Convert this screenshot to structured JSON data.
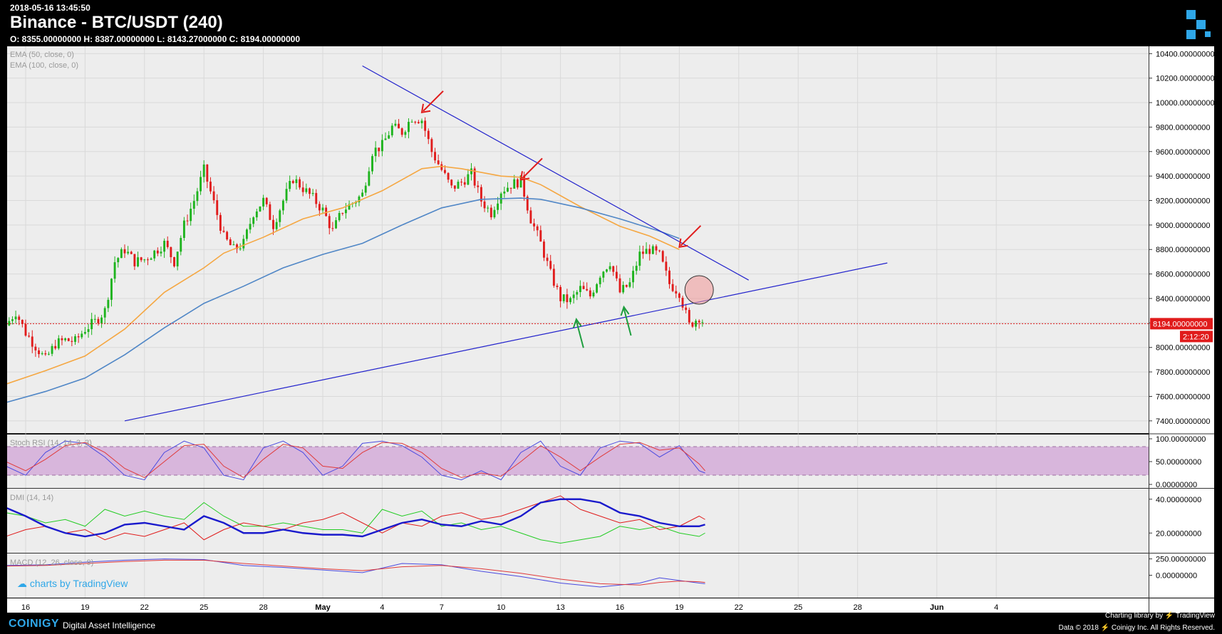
{
  "header": {
    "timestamp": "2018-05-16 13:45:50",
    "title": "Binance - BTC/USDT (240)",
    "ohlc": "O: 8355.00000000 H: 8387.00000000 L: 8143.27000000 C: 8194.00000000"
  },
  "footer": {
    "brand": "COINIGY",
    "tagline": "Digital Asset Intelligence",
    "library": "Charting library by ⚡ TradingView",
    "data_credit": "Data © 2018 ⚡ Coinigy Inc. All Rights Reserved.",
    "watermark": "charts by TradingView"
  },
  "indicators": {
    "ema50": "EMA (50, close, 0)",
    "ema100": "EMA (100, close, 0)",
    "stoch": "Stoch RSI (14, 14, 3, 3)",
    "dmi": "DMI (14, 14)",
    "macd": "MACD (12, 26, close, 9)"
  },
  "colors": {
    "up": "#1db31d",
    "down": "#e01b1b",
    "ema50": "#f5a742",
    "ema100": "#4f86c6",
    "trendline": "#2222cc",
    "arrow_red": "#e01b1b",
    "arrow_green": "#1e9e3e"
  },
  "chart_data": {
    "type": "candlestick",
    "x_axis_labels": [
      "16",
      "19",
      "22",
      "25",
      "28",
      "May",
      "4",
      "7",
      "10",
      "13",
      "16",
      "19",
      "22",
      "25",
      "28",
      "Jun",
      "4"
    ],
    "y_ticks": [
      "10400.00000000",
      "10200.00000000",
      "10000.00000000",
      "9800.00000000",
      "9600.00000000",
      "9400.00000000",
      "9200.00000000",
      "9000.00000000",
      "8800.00000000",
      "8600.00000000",
      "8400.00000000",
      "8200.00000000",
      "8000.00000000",
      "7800.00000000",
      "7600.00000000",
      "7400.00000000"
    ],
    "ylim": [
      7300,
      10460
    ],
    "last_price": "8194.00000000",
    "countdown": "2:12:20",
    "x_tick_dates": [
      16,
      19,
      22,
      25,
      28,
      31,
      34,
      37,
      40,
      43,
      46,
      49,
      52,
      55,
      58,
      62,
      65
    ],
    "close_path": [
      [
        15.0,
        8180
      ],
      [
        15.5,
        8290
      ],
      [
        16.0,
        8120
      ],
      [
        16.5,
        8010
      ],
      [
        17.0,
        7900
      ],
      [
        17.5,
        8030
      ],
      [
        18.0,
        8060
      ],
      [
        18.5,
        8050
      ],
      [
        19.0,
        8150
      ],
      [
        19.5,
        8210
      ],
      [
        20.0,
        8300
      ],
      [
        20.5,
        8700
      ],
      [
        21.0,
        8800
      ],
      [
        21.5,
        8700
      ],
      [
        22.0,
        8720
      ],
      [
        22.5,
        8780
      ],
      [
        23.0,
        8850
      ],
      [
        23.5,
        8700
      ],
      [
        24.0,
        9000
      ],
      [
        24.5,
        9200
      ],
      [
        25.0,
        9450
      ],
      [
        25.5,
        9180
      ],
      [
        26.0,
        8900
      ],
      [
        26.5,
        8800
      ],
      [
        27.0,
        8850
      ],
      [
        27.5,
        9100
      ],
      [
        28.0,
        9200
      ],
      [
        28.5,
        9000
      ],
      [
        29.0,
        9200
      ],
      [
        29.5,
        9380
      ],
      [
        30.0,
        9300
      ],
      [
        30.5,
        9220
      ],
      [
        31.0,
        9120
      ],
      [
        31.5,
        8950
      ],
      [
        32.0,
        9120
      ],
      [
        32.5,
        9180
      ],
      [
        33.0,
        9250
      ],
      [
        33.5,
        9600
      ],
      [
        34.0,
        9650
      ],
      [
        34.5,
        9800
      ],
      [
        35.0,
        9760
      ],
      [
        35.5,
        9880
      ],
      [
        36.0,
        9860
      ],
      [
        36.5,
        9600
      ],
      [
        37.0,
        9450
      ],
      [
        37.5,
        9300
      ],
      [
        38.0,
        9350
      ],
      [
        38.5,
        9420
      ],
      [
        39.0,
        9200
      ],
      [
        39.5,
        9100
      ],
      [
        40.0,
        9280
      ],
      [
        40.5,
        9330
      ],
      [
        41.0,
        9360
      ],
      [
        41.5,
        9050
      ],
      [
        42.0,
        8850
      ],
      [
        42.5,
        8600
      ],
      [
        43.0,
        8400
      ],
      [
        43.5,
        8380
      ],
      [
        44.0,
        8480
      ],
      [
        44.5,
        8420
      ],
      [
        45.0,
        8600
      ],
      [
        45.5,
        8700
      ],
      [
        46.0,
        8450
      ],
      [
        46.5,
        8520
      ],
      [
        47.0,
        8760
      ],
      [
        47.5,
        8800
      ],
      [
        48.0,
        8750
      ],
      [
        48.5,
        8520
      ],
      [
        49.0,
        8450
      ],
      [
        49.5,
        8180
      ],
      [
        50.0,
        8250
      ],
      [
        50.3,
        8194
      ]
    ],
    "series": [
      {
        "name": "EMA (50, close, 0)",
        "points": [
          [
            15,
            7700
          ],
          [
            17,
            7810
          ],
          [
            19,
            7930
          ],
          [
            21,
            8150
          ],
          [
            23,
            8450
          ],
          [
            25,
            8650
          ],
          [
            26,
            8770
          ],
          [
            28,
            8900
          ],
          [
            30,
            9050
          ],
          [
            32,
            9140
          ],
          [
            34,
            9280
          ],
          [
            36,
            9460
          ],
          [
            37,
            9480
          ],
          [
            38,
            9460
          ],
          [
            40,
            9400
          ],
          [
            41,
            9390
          ],
          [
            42,
            9330
          ],
          [
            44,
            9150
          ],
          [
            46,
            8990
          ],
          [
            47.5,
            8910
          ],
          [
            49,
            8800
          ]
        ]
      },
      {
        "name": "EMA (100, close, 0)",
        "points": [
          [
            15,
            7550
          ],
          [
            17,
            7640
          ],
          [
            19,
            7750
          ],
          [
            21,
            7940
          ],
          [
            23,
            8160
          ],
          [
            25,
            8360
          ],
          [
            27,
            8500
          ],
          [
            29,
            8650
          ],
          [
            31,
            8760
          ],
          [
            33,
            8850
          ],
          [
            35,
            9000
          ],
          [
            37,
            9140
          ],
          [
            39,
            9210
          ],
          [
            41,
            9220
          ],
          [
            42,
            9210
          ],
          [
            44,
            9140
          ],
          [
            46,
            9050
          ],
          [
            48,
            8950
          ],
          [
            49,
            8890
          ]
        ]
      }
    ],
    "annotations": {
      "downtrend_line": [
        [
          33.0,
          10300
        ],
        [
          52.5,
          8550
        ]
      ],
      "uptrend_line": [
        [
          21.0,
          7400
        ],
        [
          59.5,
          8690
        ]
      ],
      "red_arrows_at": [
        [
          36.0,
          9920
        ],
        [
          41.0,
          9370
        ],
        [
          49.0,
          8820
        ]
      ],
      "green_arrows_at": [
        [
          43.8,
          8230
        ],
        [
          46.2,
          8330
        ]
      ],
      "circle_at": [
        50.0,
        8470
      ]
    },
    "stoch_rsi": {
      "bands": [
        20,
        80
      ],
      "y_ticks": [
        "100.00000000",
        "50.00000000",
        "0.00000000"
      ],
      "k": [
        [
          15,
          40
        ],
        [
          16,
          20
        ],
        [
          17,
          70
        ],
        [
          18,
          95
        ],
        [
          19,
          90
        ],
        [
          20,
          60
        ],
        [
          21,
          20
        ],
        [
          22,
          10
        ],
        [
          23,
          70
        ],
        [
          24,
          95
        ],
        [
          25,
          80
        ],
        [
          26,
          20
        ],
        [
          27,
          10
        ],
        [
          28,
          80
        ],
        [
          29,
          95
        ],
        [
          30,
          70
        ],
        [
          31,
          20
        ],
        [
          32,
          40
        ],
        [
          33,
          90
        ],
        [
          34,
          95
        ],
        [
          35,
          85
        ],
        [
          36,
          60
        ],
        [
          37,
          20
        ],
        [
          38,
          10
        ],
        [
          39,
          30
        ],
        [
          40,
          10
        ],
        [
          41,
          70
        ],
        [
          42,
          95
        ],
        [
          43,
          40
        ],
        [
          44,
          20
        ],
        [
          45,
          80
        ],
        [
          46,
          95
        ],
        [
          47,
          90
        ],
        [
          48,
          60
        ],
        [
          49,
          85
        ],
        [
          50,
          30
        ],
        [
          50.3,
          25
        ]
      ],
      "d": [
        [
          15,
          50
        ],
        [
          16,
          30
        ],
        [
          17,
          55
        ],
        [
          18,
          85
        ],
        [
          19,
          92
        ],
        [
          20,
          70
        ],
        [
          21,
          35
        ],
        [
          22,
          15
        ],
        [
          23,
          50
        ],
        [
          24,
          85
        ],
        [
          25,
          88
        ],
        [
          26,
          40
        ],
        [
          27,
          15
        ],
        [
          28,
          55
        ],
        [
          29,
          88
        ],
        [
          30,
          80
        ],
        [
          31,
          40
        ],
        [
          32,
          35
        ],
        [
          33,
          70
        ],
        [
          34,
          92
        ],
        [
          35,
          90
        ],
        [
          36,
          70
        ],
        [
          37,
          35
        ],
        [
          38,
          15
        ],
        [
          39,
          25
        ],
        [
          40,
          18
        ],
        [
          41,
          50
        ],
        [
          42,
          85
        ],
        [
          43,
          60
        ],
        [
          44,
          30
        ],
        [
          45,
          60
        ],
        [
          46,
          88
        ],
        [
          47,
          92
        ],
        [
          48,
          75
        ],
        [
          49,
          80
        ],
        [
          50,
          45
        ],
        [
          50.3,
          30
        ]
      ]
    },
    "dmi": {
      "y_ticks": [
        "40.00000000",
        "20.00000000"
      ],
      "adx": [
        [
          15,
          35
        ],
        [
          16,
          30
        ],
        [
          17,
          24
        ],
        [
          18,
          20
        ],
        [
          19,
          18
        ],
        [
          20,
          20
        ],
        [
          21,
          25
        ],
        [
          22,
          26
        ],
        [
          23,
          24
        ],
        [
          24,
          22
        ],
        [
          25,
          30
        ],
        [
          26,
          26
        ],
        [
          27,
          20
        ],
        [
          28,
          20
        ],
        [
          29,
          22
        ],
        [
          30,
          20
        ],
        [
          31,
          19
        ],
        [
          32,
          19
        ],
        [
          33,
          18
        ],
        [
          34,
          22
        ],
        [
          35,
          26
        ],
        [
          36,
          28
        ],
        [
          37,
          25
        ],
        [
          38,
          24
        ],
        [
          39,
          27
        ],
        [
          40,
          25
        ],
        [
          41,
          30
        ],
        [
          42,
          38
        ],
        [
          43,
          40
        ],
        [
          44,
          40
        ],
        [
          45,
          38
        ],
        [
          46,
          32
        ],
        [
          47,
          30
        ],
        [
          48,
          26
        ],
        [
          49,
          24
        ],
        [
          50,
          24
        ],
        [
          50.3,
          25
        ]
      ],
      "di_plus": [
        [
          15,
          32
        ],
        [
          16,
          30
        ],
        [
          17,
          26
        ],
        [
          18,
          28
        ],
        [
          19,
          24
        ],
        [
          20,
          34
        ],
        [
          21,
          30
        ],
        [
          22,
          33
        ],
        [
          23,
          30
        ],
        [
          24,
          28
        ],
        [
          25,
          38
        ],
        [
          26,
          30
        ],
        [
          27,
          24
        ],
        [
          28,
          24
        ],
        [
          29,
          26
        ],
        [
          30,
          24
        ],
        [
          31,
          22
        ],
        [
          32,
          22
        ],
        [
          33,
          20
        ],
        [
          34,
          34
        ],
        [
          35,
          30
        ],
        [
          36,
          33
        ],
        [
          37,
          24
        ],
        [
          38,
          26
        ],
        [
          39,
          22
        ],
        [
          40,
          24
        ],
        [
          41,
          20
        ],
        [
          42,
          16
        ],
        [
          43,
          14
        ],
        [
          44,
          16
        ],
        [
          45,
          18
        ],
        [
          46,
          24
        ],
        [
          47,
          22
        ],
        [
          48,
          24
        ],
        [
          49,
          20
        ],
        [
          50,
          18
        ],
        [
          50.3,
          20
        ]
      ],
      "di_minus": [
        [
          15,
          18
        ],
        [
          16,
          22
        ],
        [
          17,
          24
        ],
        [
          18,
          20
        ],
        [
          19,
          22
        ],
        [
          20,
          16
        ],
        [
          21,
          20
        ],
        [
          22,
          18
        ],
        [
          23,
          22
        ],
        [
          24,
          26
        ],
        [
          25,
          16
        ],
        [
          26,
          22
        ],
        [
          27,
          26
        ],
        [
          28,
          24
        ],
        [
          29,
          22
        ],
        [
          30,
          26
        ],
        [
          31,
          28
        ],
        [
          32,
          32
        ],
        [
          33,
          26
        ],
        [
          34,
          20
        ],
        [
          35,
          26
        ],
        [
          36,
          24
        ],
        [
          37,
          30
        ],
        [
          38,
          32
        ],
        [
          39,
          28
        ],
        [
          40,
          30
        ],
        [
          41,
          34
        ],
        [
          42,
          38
        ],
        [
          43,
          42
        ],
        [
          44,
          34
        ],
        [
          45,
          30
        ],
        [
          46,
          26
        ],
        [
          47,
          28
        ],
        [
          48,
          22
        ],
        [
          49,
          24
        ],
        [
          50,
          30
        ],
        [
          50.3,
          28
        ]
      ]
    },
    "macd": {
      "y_ticks": [
        "250.00000000",
        "0.00000000"
      ],
      "macd": [
        [
          15,
          150
        ],
        [
          17,
          160
        ],
        [
          19,
          200
        ],
        [
          21,
          230
        ],
        [
          23,
          250
        ],
        [
          25,
          240
        ],
        [
          27,
          150
        ],
        [
          29,
          120
        ],
        [
          31,
          80
        ],
        [
          33,
          40
        ],
        [
          35,
          180
        ],
        [
          37,
          160
        ],
        [
          39,
          60
        ],
        [
          41,
          -20
        ],
        [
          43,
          -120
        ],
        [
          45,
          -180
        ],
        [
          47,
          -120
        ],
        [
          48,
          -40
        ],
        [
          49,
          -80
        ],
        [
          50,
          -120
        ],
        [
          50.3,
          -130
        ]
      ],
      "signal": [
        [
          15,
          140
        ],
        [
          17,
          150
        ],
        [
          19,
          180
        ],
        [
          21,
          210
        ],
        [
          23,
          230
        ],
        [
          25,
          230
        ],
        [
          27,
          180
        ],
        [
          29,
          140
        ],
        [
          31,
          100
        ],
        [
          33,
          70
        ],
        [
          35,
          130
        ],
        [
          37,
          150
        ],
        [
          39,
          100
        ],
        [
          41,
          30
        ],
        [
          43,
          -60
        ],
        [
          45,
          -130
        ],
        [
          47,
          -150
        ],
        [
          48,
          -110
        ],
        [
          49,
          -90
        ],
        [
          50,
          -100
        ],
        [
          50.3,
          -110
        ]
      ]
    }
  }
}
